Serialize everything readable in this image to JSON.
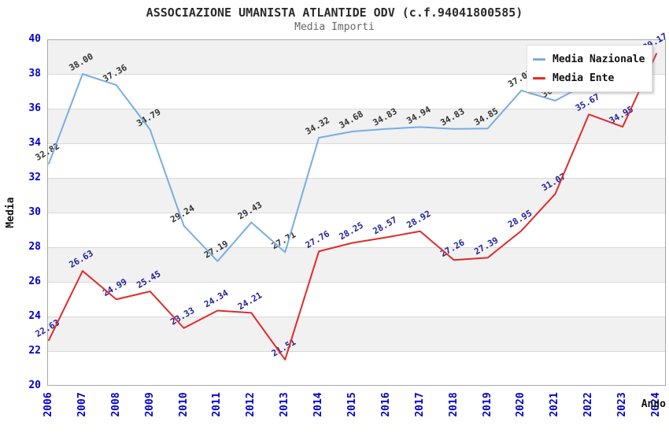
{
  "chart_data": {
    "type": "line",
    "title": "ASSOCIAZIONE UMANISTA ATLANTIDE ODV (c.f.94041800585)",
    "subtitle": "Media Importi",
    "xlabel": "Anno",
    "ylabel": "Media",
    "ylim": [
      20,
      40
    ],
    "ytick_step": 2,
    "grid": "horizontal-bands-alternating",
    "legend_position": "top-right",
    "xtick_rotation": -90,
    "data_label_rotation": -30,
    "categories": [
      "2006",
      "2007",
      "2008",
      "2009",
      "2010",
      "2011",
      "2012",
      "2013",
      "2014",
      "2015",
      "2016",
      "2017",
      "2018",
      "2019",
      "2020",
      "2021",
      "2022",
      "2023",
      "2024"
    ],
    "series": [
      {
        "name": "Media Nazionale",
        "line_color": "#78ADE2",
        "label_color": "#333333",
        "values": [
          32.82,
          38.0,
          37.36,
          34.79,
          29.24,
          27.19,
          29.43,
          27.71,
          34.32,
          34.68,
          34.83,
          34.94,
          34.83,
          34.85,
          37.05,
          36.46,
          37.5,
          null,
          null
        ]
      },
      {
        "name": "Media Ente",
        "line_color": "#E02B2B",
        "label_color": "#22229A",
        "values": [
          22.63,
          26.63,
          24.99,
          25.45,
          23.33,
          24.34,
          24.21,
          21.51,
          27.76,
          28.25,
          28.57,
          28.92,
          27.26,
          27.39,
          28.95,
          31.07,
          35.67,
          34.95,
          39.17
        ]
      }
    ],
    "colors": {
      "axis_text": "#0000CC",
      "axis_title": "#111111",
      "title": "#2B2B2B",
      "subtitle": "#666666",
      "band": "#F1F1F1",
      "band_alt": "#FFFFFF",
      "gridline": "#D9D9D9",
      "plot_border": "#A8A8A8"
    }
  }
}
